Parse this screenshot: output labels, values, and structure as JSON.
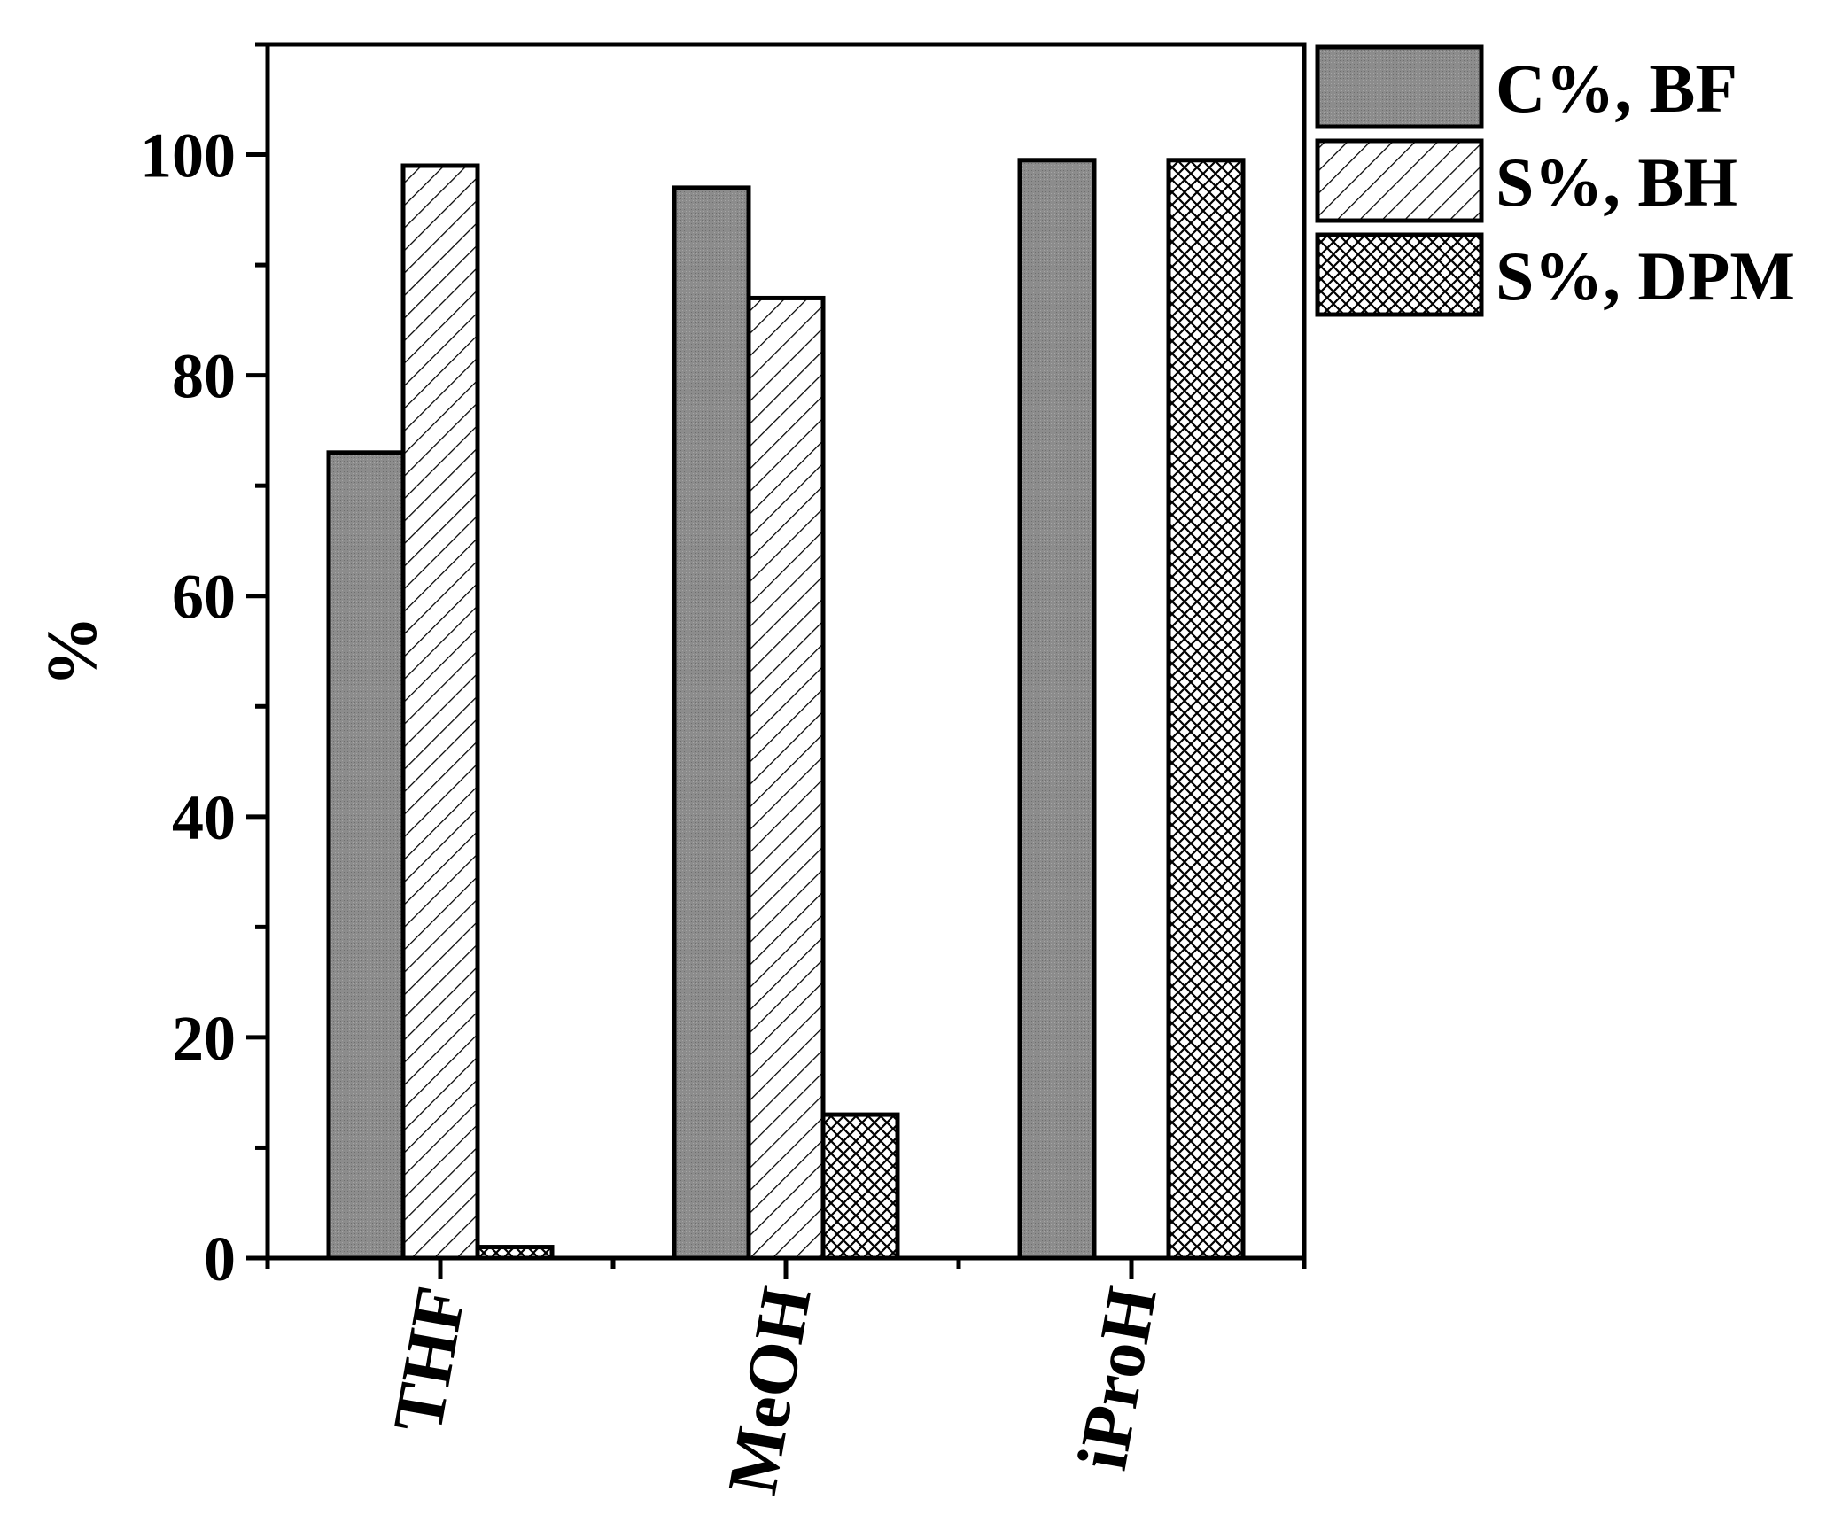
{
  "chart_data": {
    "type": "bar",
    "title": "",
    "xlabel": "",
    "ylabel": "%",
    "ylim": [
      0,
      110
    ],
    "yticks": [
      "0",
      "20",
      "40",
      "60",
      "80",
      "100"
    ],
    "categories": [
      "THF",
      "MeOH",
      "iProH"
    ],
    "series": [
      {
        "name": "C%, BF",
        "values": [
          73,
          97,
          99.5
        ],
        "pattern": "solid-grey",
        "color": "#8c8c8c"
      },
      {
        "name": "S%, BH",
        "values": [
          99,
          87,
          0
        ],
        "pattern": "diagonal-hatch",
        "color": "#ffffff"
      },
      {
        "name": "S%, DPM",
        "values": [
          1,
          13,
          99.5
        ],
        "pattern": "cross-hatch",
        "color": "#ffffff"
      }
    ],
    "grid": false,
    "legend_position": "top-right-outside"
  }
}
